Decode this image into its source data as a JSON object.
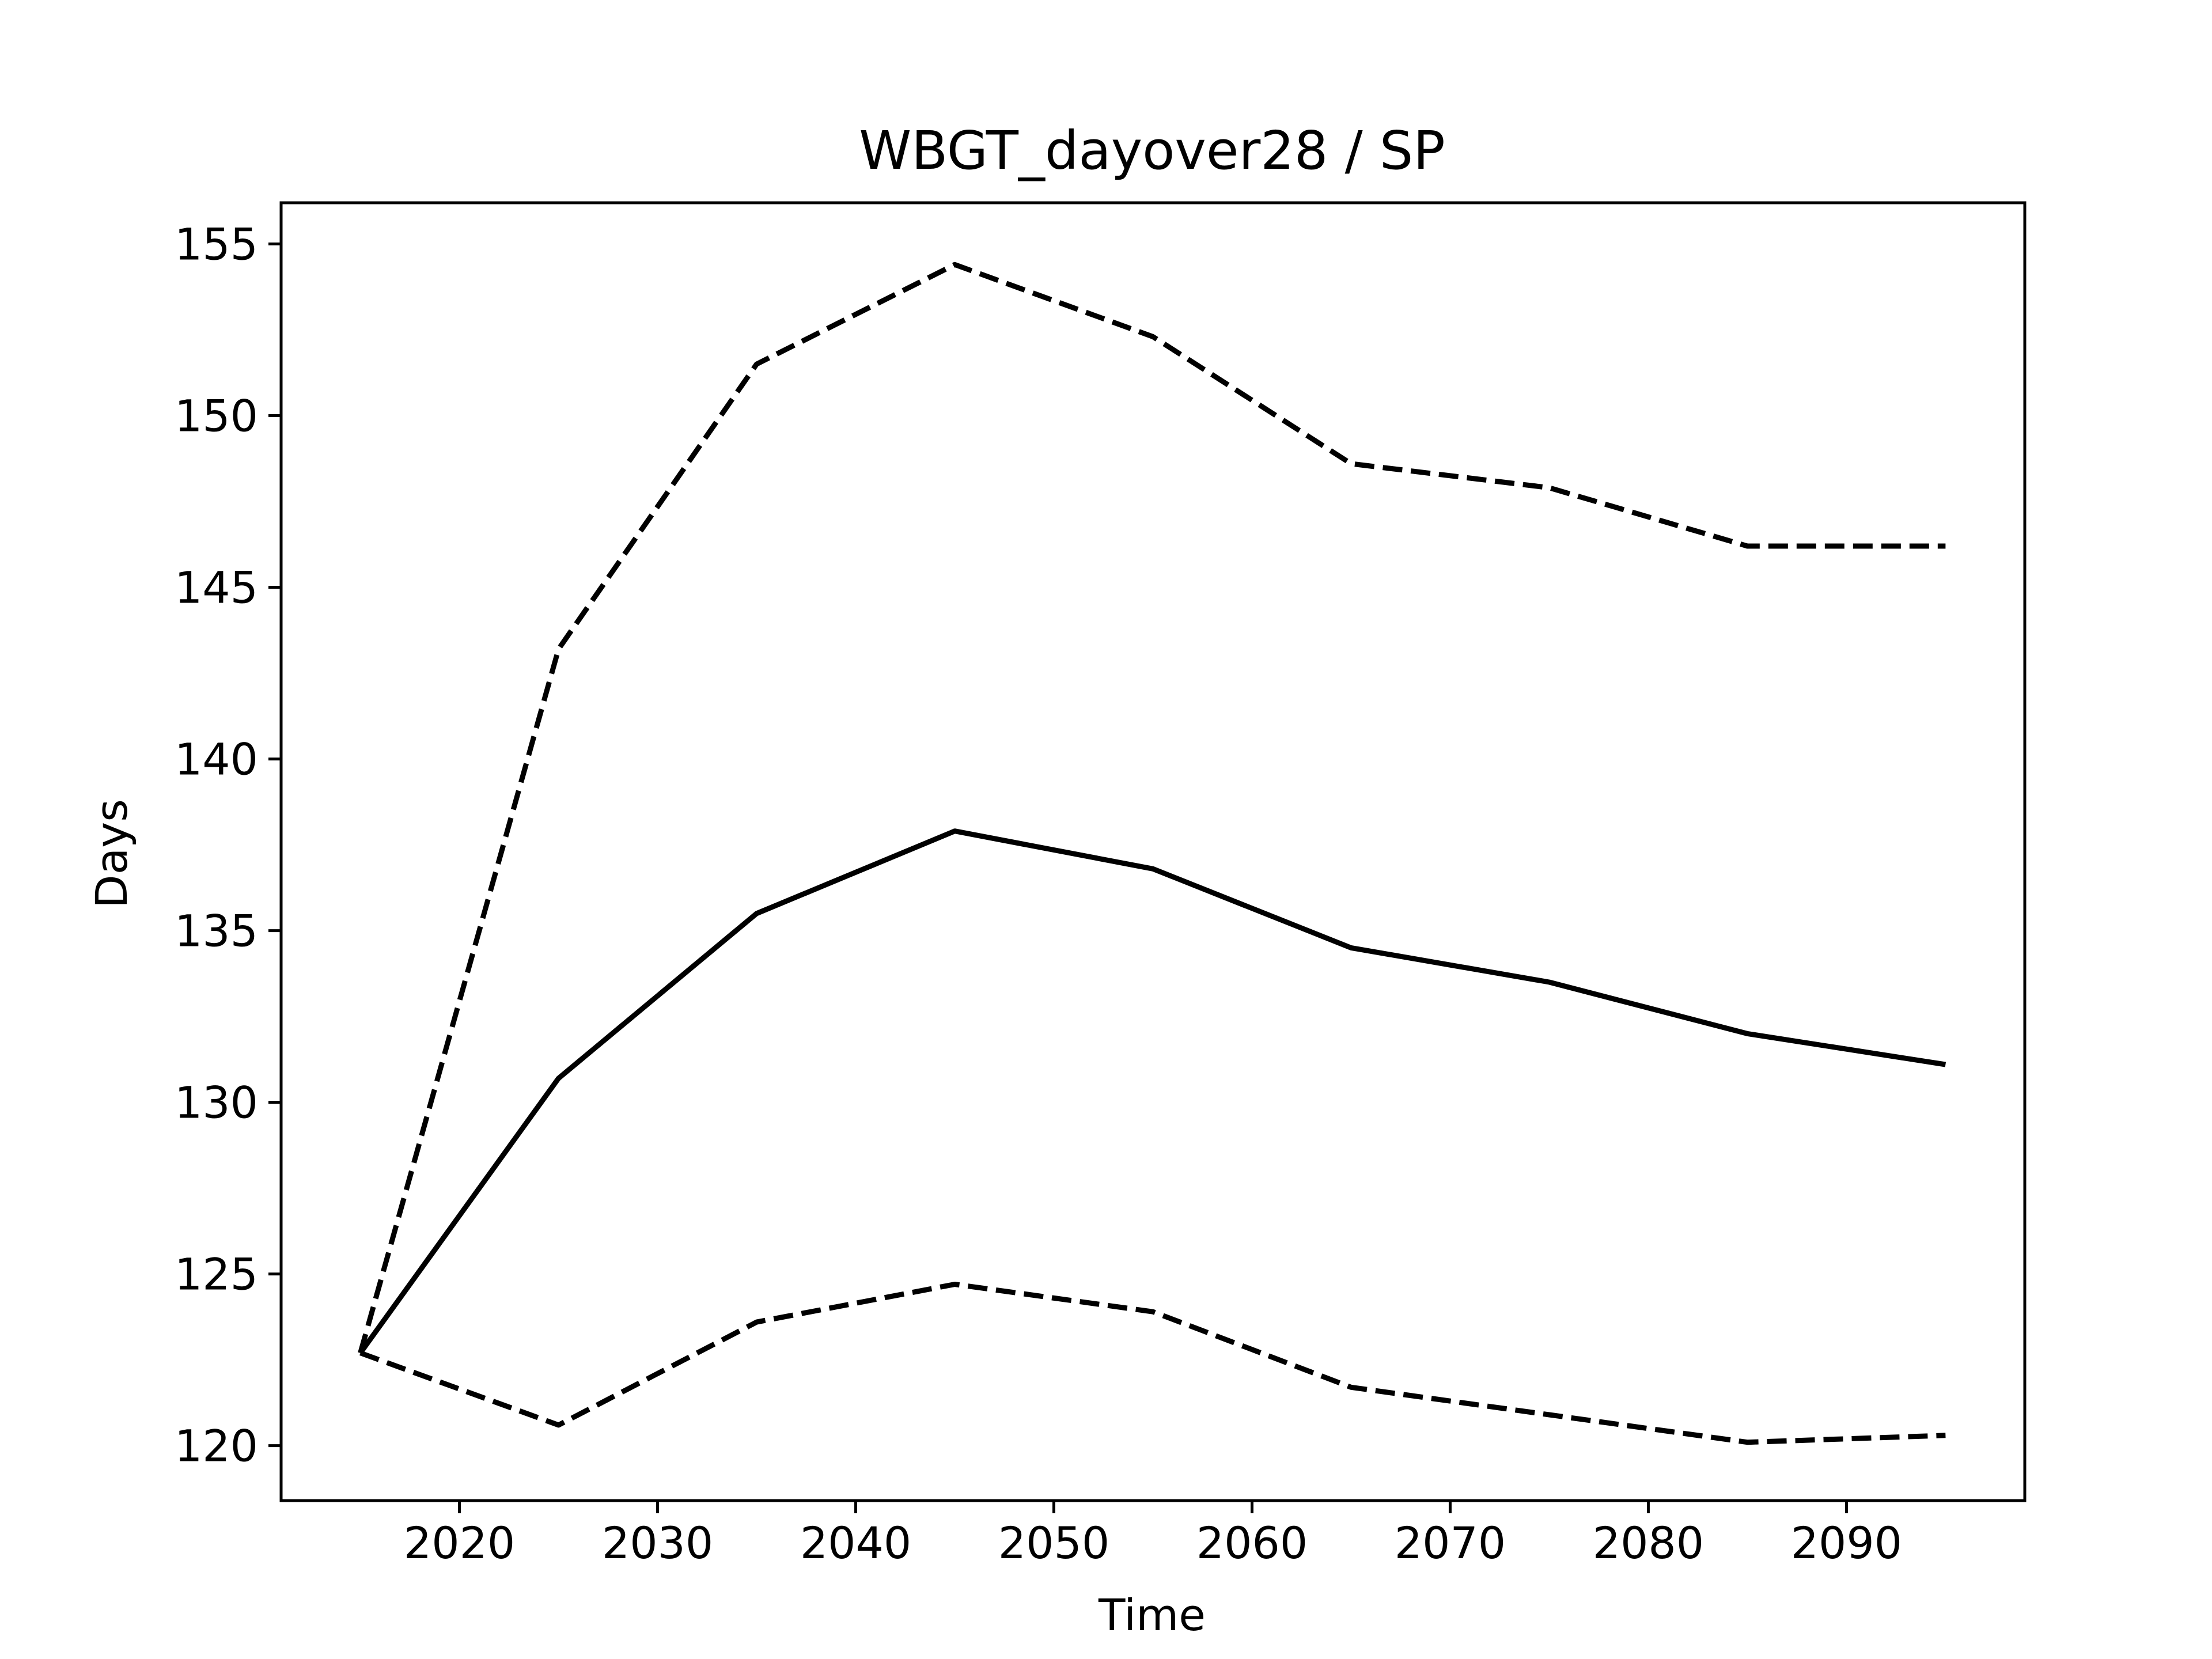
{
  "chart_data": {
    "type": "line",
    "title": "WBGT_dayover28 / SP",
    "xlabel": "Time",
    "ylabel": "Days",
    "x": [
      2015,
      2025,
      2035,
      2045,
      2055,
      2065,
      2075,
      2085,
      2095
    ],
    "series": [
      {
        "style": "solid",
        "values": [
          122.7,
          130.7,
          135.5,
          137.9,
          136.8,
          134.5,
          133.5,
          132.0,
          131.1
        ]
      },
      {
        "style": "dashed",
        "values": [
          122.7,
          143.2,
          151.5,
          154.4,
          152.3,
          148.6,
          147.9,
          146.2,
          146.2
        ]
      },
      {
        "style": "dashed",
        "values": [
          122.7,
          120.6,
          123.6,
          124.7,
          123.9,
          121.7,
          120.9,
          120.1,
          120.3
        ]
      }
    ],
    "xlim": [
      2011,
      2099
    ],
    "ylim": [
      118.4,
      156.2
    ],
    "xticks": [
      2020,
      2030,
      2040,
      2050,
      2060,
      2070,
      2080,
      2090
    ],
    "yticks": [
      120,
      125,
      130,
      135,
      140,
      145,
      150,
      155
    ],
    "grid": false,
    "line_color": "#000000"
  }
}
